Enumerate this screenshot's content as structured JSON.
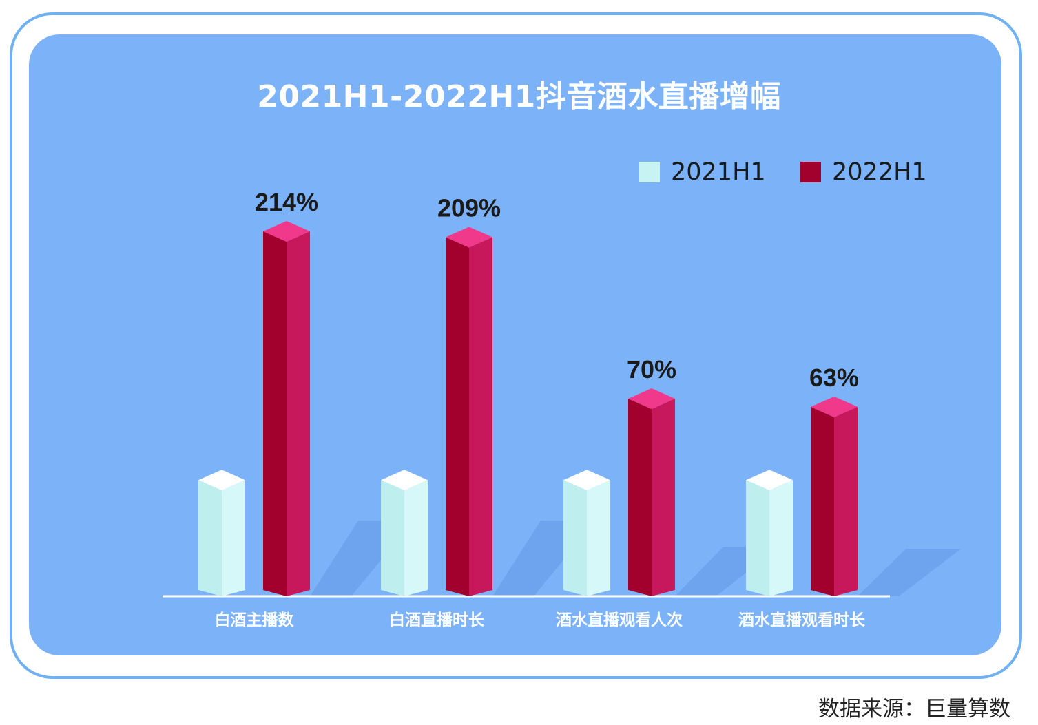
{
  "chart_data": {
    "type": "bar",
    "title": "2021H1-2022H1抖音酒水直播增幅",
    "categories": [
      "白酒主播数",
      "白酒直播时长",
      "酒水直播观看人次",
      "酒水直播观看时长"
    ],
    "series": [
      {
        "name": "2021H1",
        "values": [
          100,
          100,
          100,
          100
        ],
        "color": "#c8f3f3",
        "labels": [
          "",
          "",
          "",
          ""
        ]
      },
      {
        "name": "2022H1",
        "values": [
          314,
          309,
          170,
          163
        ],
        "color": "#c4145a",
        "labels": [
          "214%",
          "209%",
          "70%",
          "63%"
        ]
      }
    ],
    "grid": false,
    "legend_position": "top-right"
  },
  "source": "数据来源：巨量算数",
  "colors": {
    "frame": "#6fb1f2",
    "panel": "#7cb3f8",
    "bar_2021_front": "#c8f3f3",
    "bar_2022_front": "#c4145a",
    "bar_2022_top": "#f0398a"
  }
}
